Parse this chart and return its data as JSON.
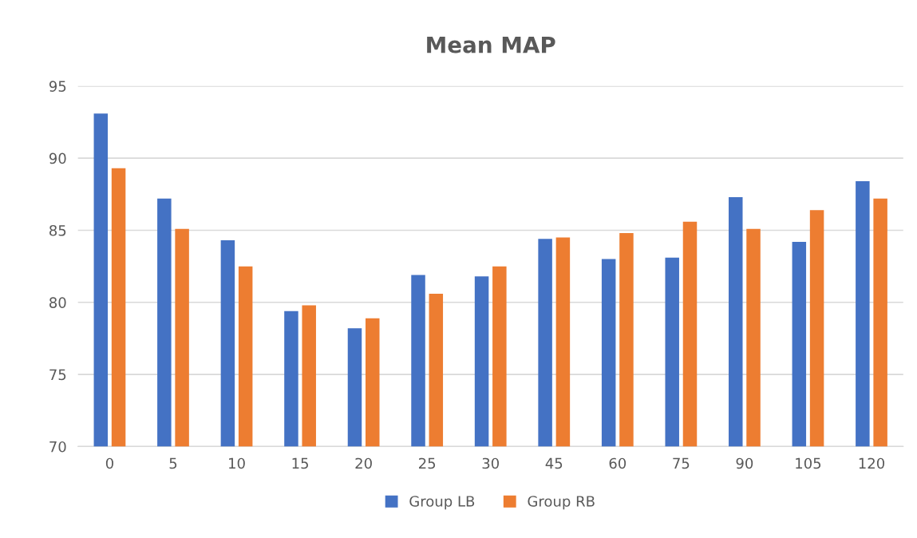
{
  "chart_data": {
    "type": "bar",
    "title": "Mean MAP",
    "categories": [
      "0",
      "5",
      "10",
      "15",
      "20",
      "25",
      "30",
      "45",
      "60",
      "75",
      "90",
      "105",
      "120"
    ],
    "series": [
      {
        "name": "Group LB",
        "color": "#4472c4",
        "values": [
          93.1,
          87.2,
          84.3,
          79.4,
          78.2,
          81.9,
          81.8,
          84.4,
          83.0,
          83.1,
          87.3,
          84.2,
          88.4
        ]
      },
      {
        "name": "Group RB",
        "color": "#ed7d31",
        "values": [
          89.3,
          85.1,
          82.5,
          79.8,
          78.9,
          80.6,
          82.5,
          84.5,
          84.8,
          85.6,
          85.1,
          86.4,
          87.2
        ]
      }
    ],
    "ylim": [
      70,
      95
    ],
    "yticks": [
      70,
      75,
      80,
      85,
      90,
      95
    ],
    "grid": "y",
    "legend": "bottom"
  }
}
